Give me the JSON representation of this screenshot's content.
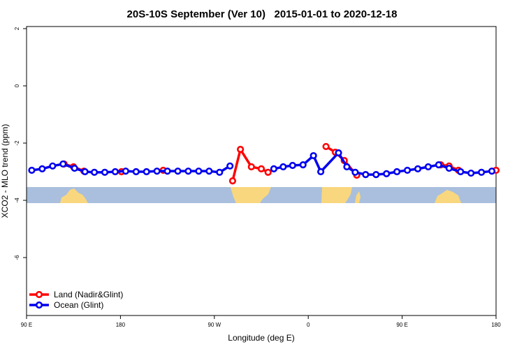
{
  "chart_data": {
    "type": "line",
    "title": "20S-10S September (Ver 10)   2015-01-01 to 2020-12-18",
    "x_label": "Longitude (deg E)",
    "y_label": "XCO2 - MLO trend (ppm)",
    "xlim": [
      90,
      540
    ],
    "xticks": [
      {
        "value": 90,
        "label": "90 E"
      },
      180,
      {
        "value": 270,
        "label": "90 W"
      },
      {
        "value": 360,
        "label": "0"
      },
      {
        "value": 450,
        "label": "90 E"
      },
      {
        "value": 540,
        "label": "180"
      }
    ],
    "ylim": [
      -8,
      2
    ],
    "yticks": [
      -6,
      -4,
      -2,
      0,
      2
    ],
    "legend": "bottom-left",
    "series": [
      {
        "name": "Land (Nadir&Glint)",
        "color": "#ff0000",
        "x": [
          126,
          135,
          145,
          null,
          181,
          null,
          221,
          null,
          287.5,
          295,
          305.5,
          315,
          321.5,
          null,
          377,
          386,
          394.5,
          406.5,
          null,
          487,
          495,
          504,
          null,
          540
        ],
        "values": [
          -2.73,
          -2.83,
          -2.98,
          null,
          -3.0,
          null,
          -2.95,
          null,
          -3.32,
          -2.22,
          -2.83,
          -2.9,
          -3.02,
          null,
          -2.12,
          -2.32,
          -2.61,
          -3.12,
          null,
          -2.76,
          -2.8,
          -2.95,
          null,
          -2.95
        ]
      },
      {
        "name": "Ocean (Glint)",
        "color": "#0000ee",
        "x": [
          95,
          105,
          115,
          125,
          136,
          146,
          155,
          165,
          175,
          185,
          195,
          205,
          215,
          225,
          235,
          245,
          255,
          265,
          275,
          285,
          null,
          327,
          336,
          345,
          355,
          365,
          372,
          389,
          397,
          405,
          415,
          425,
          435,
          445,
          455,
          465,
          475,
          485,
          495,
          506,
          516,
          526,
          536
        ],
        "values": [
          -2.95,
          -2.9,
          -2.8,
          -2.73,
          -2.88,
          -3.0,
          -3.02,
          -3.02,
          -3.0,
          -2.98,
          -3.0,
          -3.0,
          -2.98,
          -2.98,
          -2.98,
          -2.98,
          -2.98,
          -2.98,
          -3.02,
          -2.8,
          null,
          -2.9,
          -2.83,
          -2.78,
          -2.76,
          -2.44,
          -3.0,
          -2.34,
          -2.83,
          -3.02,
          -3.1,
          -3.1,
          -3.07,
          -3.0,
          -2.95,
          -2.9,
          -2.83,
          -2.76,
          -2.88,
          -3.0,
          -3.05,
          -3.02,
          -2.98
        ]
      }
    ]
  }
}
